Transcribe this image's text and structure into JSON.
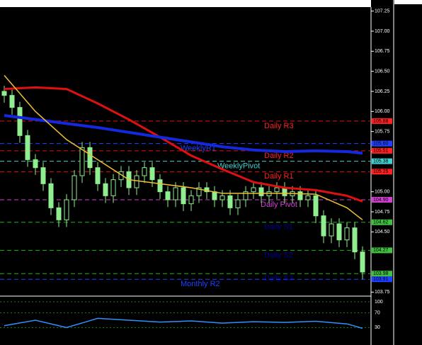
{
  "chart_data": {
    "type": "candlestick",
    "ylim": [
      103.7,
      107.3
    ],
    "yticks": [
      {
        "value": 107.25,
        "label": "107.25"
      },
      {
        "value": 107,
        "label": "107.00"
      },
      {
        "value": 106.75,
        "label": "106.75"
      },
      {
        "value": 106.5,
        "label": "106.50"
      },
      {
        "value": 106.25,
        "label": "106.25"
      },
      {
        "value": 106,
        "label": "106.00"
      },
      {
        "value": 105.75,
        "label": "105.75"
      },
      {
        "value": 105.5,
        "label": "105.50"
      },
      {
        "value": 105,
        "label": "105.00"
      },
      {
        "value": 104.75,
        "label": "104.75"
      },
      {
        "value": 104.5,
        "label": "104.50"
      },
      {
        "value": 103.75,
        "label": "103.75"
      }
    ],
    "up_color": "#90ee90",
    "down_color": "#90ee90",
    "ohlc": [
      [
        106.25,
        106.32,
        106.11,
        106.2
      ],
      [
        106.2,
        106.27,
        105.96,
        106.05
      ],
      [
        106.05,
        106.12,
        105.61,
        105.7
      ],
      [
        105.7,
        105.77,
        105.31,
        105.4
      ],
      [
        105.4,
        105.47,
        105.21,
        105.3
      ],
      [
        105.3,
        105.37,
        105.01,
        105.1
      ],
      [
        105.1,
        105.17,
        104.71,
        104.8
      ],
      [
        104.8,
        104.87,
        104.56,
        104.65
      ],
      [
        104.65,
        104.97,
        104.56,
        104.9
      ],
      [
        104.9,
        105.27,
        104.81,
        105.2
      ],
      [
        105.2,
        105.62,
        105.11,
        105.55
      ],
      [
        105.55,
        105.62,
        105.21,
        105.3
      ],
      [
        105.3,
        105.37,
        105.01,
        105.1
      ],
      [
        105.1,
        105.17,
        104.86,
        104.95
      ],
      [
        104.95,
        105.22,
        104.86,
        105.15
      ],
      [
        105.15,
        105.32,
        105.06,
        105.25
      ],
      [
        105.25,
        105.32,
        104.96,
        105.05
      ],
      [
        105.05,
        105.27,
        104.96,
        105.2
      ],
      [
        105.2,
        105.37,
        105.11,
        105.3
      ],
      [
        105.3,
        105.37,
        105.06,
        105.15
      ],
      [
        105.15,
        105.22,
        104.91,
        105
      ],
      [
        105,
        105.07,
        104.81,
        104.9
      ],
      [
        104.9,
        105.12,
        104.81,
        105.05
      ],
      [
        105.05,
        105.12,
        104.76,
        104.85
      ],
      [
        104.85,
        105.02,
        104.76,
        104.95
      ],
      [
        104.95,
        105.12,
        104.86,
        105.05
      ],
      [
        105.05,
        105.12,
        104.91,
        105
      ],
      [
        105,
        105.07,
        104.81,
        104.9
      ],
      [
        104.9,
        105.02,
        104.81,
        104.95
      ],
      [
        104.95,
        105.02,
        104.71,
        104.8
      ],
      [
        104.8,
        104.97,
        104.71,
        104.9
      ],
      [
        104.9,
        105.07,
        104.81,
        105
      ],
      [
        105,
        105.12,
        104.91,
        105.05
      ],
      [
        105.05,
        105.12,
        104.86,
        104.95
      ],
      [
        104.95,
        105.07,
        104.86,
        105
      ],
      [
        105,
        105.12,
        104.91,
        105.05
      ],
      [
        105.05,
        105.12,
        104.86,
        104.95
      ],
      [
        104.95,
        105.07,
        104.86,
        105
      ],
      [
        105,
        105.07,
        104.81,
        104.9
      ],
      [
        104.9,
        105.02,
        104.81,
        104.95
      ],
      [
        104.95,
        105.02,
        104.61,
        104.7
      ],
      [
        104.7,
        104.77,
        104.36,
        104.45
      ],
      [
        104.45,
        104.67,
        104.36,
        104.6
      ],
      [
        104.6,
        104.67,
        104.31,
        104.4
      ],
      [
        104.4,
        104.62,
        104.31,
        104.55
      ],
      [
        104.55,
        104.62,
        104.16,
        104.25
      ],
      [
        104.25,
        104.32,
        103.91,
        104
      ]
    ],
    "series": [
      {
        "color": "#e01010",
        "width": 3,
        "x": [
          0,
          4,
          8,
          12,
          16,
          20,
          24,
          28,
          32,
          36,
          40,
          44,
          46
        ],
        "values": [
          106.28,
          106.3,
          106.28,
          106.1,
          105.9,
          105.68,
          105.45,
          105.28,
          105.12,
          105.05,
          105.02,
          104.95,
          104.88
        ]
      },
      {
        "color": "#1428e0",
        "width": 4,
        "x": [
          0,
          4,
          8,
          12,
          16,
          20,
          24,
          28,
          32,
          36,
          40,
          44,
          46
        ],
        "values": [
          105.95,
          105.9,
          105.85,
          105.8,
          105.74,
          105.68,
          105.62,
          105.56,
          105.52,
          105.5,
          105.51,
          105.5,
          105.48
        ]
      },
      {
        "color": "#f0c030",
        "width": 1.5,
        "x": [
          0,
          4,
          8,
          12,
          16,
          20,
          24,
          28,
          32,
          36,
          40,
          44,
          46
        ],
        "values": [
          106.45,
          106,
          105.65,
          105.4,
          105.15,
          105.1,
          105.05,
          104.98,
          104.98,
          104.98,
          104.97,
          104.8,
          104.65
        ]
      }
    ],
    "levels": [
      {
        "name": "Daily R3",
        "value": 105.88,
        "value_label": "105.88",
        "color": "#e01010",
        "text_color": "#ff2020",
        "box": "#ff2020"
      },
      {
        "name": "WeeklyR1",
        "value": 105.6,
        "value_label": "105.60",
        "color": "#2040ff",
        "text_color": "#2040ff",
        "box": "#2040ff"
      },
      {
        "name": "Daily R2",
        "value": 105.51,
        "value_label": "105.51",
        "color": "#e01010",
        "text_color": "#ff2020",
        "box": "#ff2020"
      },
      {
        "name": "WeeklyPivot",
        "value": 105.38,
        "value_label": "105.38",
        "color": "#40d0d0",
        "text_color": "#40d0d0",
        "box": "#40d0d0"
      },
      {
        "name": "Daily R1",
        "value": 105.25,
        "value_label": "105.25",
        "color": "#e01010",
        "text_color": "#ff2020",
        "box": "#ff2020"
      },
      {
        "name": "Daily Pivot",
        "value": 104.9,
        "value_label": "104.90",
        "color": "#d040d0",
        "text_color": "#d040d0",
        "box": "#d040d0"
      },
      {
        "name": "Daily S1",
        "value": 104.62,
        "value_label": "104.62",
        "color": "#20b020",
        "text_color": "#000090",
        "box": "#40c040"
      },
      {
        "name": "Daily S2",
        "value": 104.27,
        "value_label": "104.27",
        "color": "#20b020",
        "text_color": "#000090",
        "box": "#40c040"
      },
      {
        "name": "Daily S3",
        "value": 103.98,
        "value_label": "103.98",
        "color": "#20b020",
        "text_color": "#000090",
        "box": "#40c040"
      },
      {
        "name": "Monthly R2",
        "value": 103.91,
        "value_label": "103.91",
        "color": "#2040ff",
        "text_color": "#2040ff",
        "box": "#2040ff"
      }
    ],
    "oscillator": {
      "ylim": [
        0,
        100
      ],
      "yticks": [
        100,
        70,
        30
      ],
      "color": "#3090ff",
      "x": [
        0,
        4,
        8,
        12,
        16,
        20,
        24,
        28,
        32,
        36,
        40,
        44,
        46
      ],
      "values": [
        35,
        50,
        30,
        55,
        50,
        45,
        48,
        42,
        46,
        44,
        47,
        40,
        28
      ]
    }
  }
}
